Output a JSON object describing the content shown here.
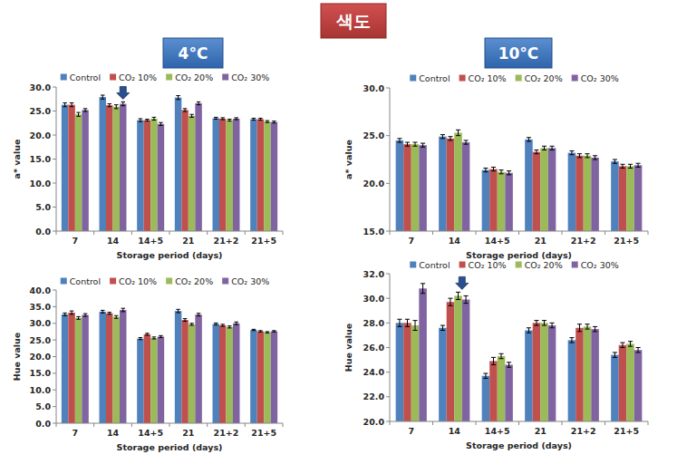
{
  "heading": "색도",
  "column_headers": [
    "4°C",
    "10°C"
  ],
  "chart_data": [
    {
      "type": "bar",
      "x_label": "Storage period (days)",
      "y_label": "a* value",
      "categories": [
        "7",
        "14",
        "14+5",
        "21",
        "21+2",
        "21+5"
      ],
      "series": [
        {
          "name": "Control",
          "color": "#4f81bd",
          "values": [
            26.3,
            27.9,
            23.1,
            27.8,
            23.5,
            23.3
          ],
          "errors": [
            0.4,
            0.4,
            0.3,
            0.4,
            0.2,
            0.2
          ]
        },
        {
          "name": "CO₂ 10%",
          "color": "#c0504d",
          "values": [
            26.3,
            26.2,
            23.1,
            25.2,
            23.4,
            23.3
          ],
          "errors": [
            0.4,
            0.3,
            0.2,
            0.3,
            0.2,
            0.2
          ]
        },
        {
          "name": "CO₂ 20%",
          "color": "#9bbb59",
          "values": [
            24.3,
            25.9,
            23.4,
            24.0,
            23.1,
            22.8
          ],
          "errors": [
            0.4,
            0.4,
            0.3,
            0.3,
            0.2,
            0.2
          ]
        },
        {
          "name": "CO₂ 30%",
          "color": "#8064a2",
          "values": [
            25.2,
            26.5,
            22.3,
            26.6,
            23.4,
            22.7
          ],
          "errors": [
            0.3,
            0.4,
            0.3,
            0.3,
            0.2,
            0.2
          ]
        }
      ],
      "ylim": [
        0,
        30
      ],
      "yticks": [
        {
          "value": 0,
          "label": "0.0"
        },
        {
          "value": 5,
          "label": "5.0"
        },
        {
          "value": 10,
          "label": "10.0"
        },
        {
          "value": 15,
          "label": "15.0"
        },
        {
          "value": 20,
          "label": "20.0"
        },
        {
          "value": 25,
          "label": "25.0"
        },
        {
          "value": 30,
          "label": "30.0"
        }
      ],
      "grid": false,
      "legend": "top"
    },
    {
      "type": "bar",
      "x_label": "Storage period (days)",
      "y_label": "a* value",
      "categories": [
        "7",
        "14",
        "14+5",
        "21",
        "21+2",
        "21+5"
      ],
      "series": [
        {
          "name": "Control",
          "color": "#4f81bd",
          "values": [
            24.5,
            24.9,
            21.4,
            24.6,
            23.2,
            22.3
          ],
          "errors": [
            0.2,
            0.2,
            0.2,
            0.2,
            0.2,
            0.2
          ]
        },
        {
          "name": "CO₂ 10%",
          "color": "#c0504d",
          "values": [
            24.1,
            24.7,
            21.5,
            23.3,
            22.9,
            21.8
          ],
          "errors": [
            0.2,
            0.2,
            0.2,
            0.2,
            0.2,
            0.2
          ]
        },
        {
          "name": "CO₂ 20%",
          "color": "#9bbb59",
          "values": [
            24.1,
            25.3,
            21.2,
            23.7,
            22.9,
            21.8
          ],
          "errors": [
            0.2,
            0.3,
            0.2,
            0.2,
            0.2,
            0.2
          ]
        },
        {
          "name": "CO₂ 30%",
          "color": "#8064a2",
          "values": [
            24.0,
            24.3,
            21.1,
            23.7,
            22.7,
            21.9
          ],
          "errors": [
            0.2,
            0.2,
            0.2,
            0.2,
            0.2,
            0.2
          ]
        }
      ],
      "ylim": [
        15,
        30
      ],
      "yticks": [
        {
          "value": 15,
          "label": "15.0"
        },
        {
          "value": 20,
          "label": "20.0"
        },
        {
          "value": 25,
          "label": "25.0"
        },
        {
          "value": 30,
          "label": "30.0"
        }
      ],
      "grid": false,
      "legend": "top"
    },
    {
      "type": "bar",
      "x_label": "Storage period (days)",
      "y_label": "Hue value",
      "categories": [
        "7",
        "14",
        "14+5",
        "21",
        "21+2",
        "21+5"
      ],
      "series": [
        {
          "name": "Control",
          "color": "#4f81bd",
          "values": [
            32.7,
            33.5,
            25.4,
            33.7,
            29.8,
            28.0
          ],
          "errors": [
            0.4,
            0.4,
            0.3,
            0.5,
            0.3,
            0.2
          ]
        },
        {
          "name": "CO₂ 10%",
          "color": "#c0504d",
          "values": [
            33.2,
            33.0,
            26.7,
            31.0,
            29.4,
            27.6
          ],
          "errors": [
            0.5,
            0.3,
            0.3,
            0.4,
            0.3,
            0.2
          ]
        },
        {
          "name": "CO₂ 20%",
          "color": "#9bbb59",
          "values": [
            31.6,
            31.9,
            25.6,
            29.7,
            28.9,
            27.3
          ],
          "errors": [
            0.4,
            0.4,
            0.3,
            0.3,
            0.3,
            0.2
          ]
        },
        {
          "name": "CO₂ 30%",
          "color": "#8064a2",
          "values": [
            32.5,
            34.0,
            26.0,
            32.6,
            30.0,
            27.6
          ],
          "errors": [
            0.4,
            0.5,
            0.3,
            0.4,
            0.4,
            0.2
          ]
        }
      ],
      "ylim": [
        0,
        40
      ],
      "yticks": [
        {
          "value": 0,
          "label": "0.0"
        },
        {
          "value": 5,
          "label": "5.0"
        },
        {
          "value": 10,
          "label": "10.0"
        },
        {
          "value": 15,
          "label": "15.0"
        },
        {
          "value": 20,
          "label": "20.0"
        },
        {
          "value": 25,
          "label": "25.0"
        },
        {
          "value": 30,
          "label": "30.0"
        },
        {
          "value": 35,
          "label": "35.0"
        },
        {
          "value": 40,
          "label": "40.0"
        }
      ],
      "grid": false,
      "legend": "top"
    },
    {
      "type": "bar",
      "x_label": "Storage period (days)",
      "y_label": "Hue value",
      "categories": [
        "7",
        "14",
        "14+5",
        "21",
        "21+2",
        "21+5"
      ],
      "series": [
        {
          "name": "Control",
          "color": "#4f81bd",
          "values": [
            28.0,
            27.6,
            23.7,
            27.4,
            26.6,
            25.4
          ],
          "errors": [
            0.3,
            0.2,
            0.2,
            0.2,
            0.2,
            0.2
          ]
        },
        {
          "name": "CO₂ 10%",
          "color": "#c0504d",
          "values": [
            28.0,
            29.7,
            24.9,
            28.0,
            27.6,
            26.2
          ],
          "errors": [
            0.3,
            0.3,
            0.3,
            0.2,
            0.3,
            0.2
          ]
        },
        {
          "name": "CO₂ 20%",
          "color": "#9bbb59",
          "values": [
            27.8,
            30.2,
            25.3,
            28.0,
            27.7,
            26.3
          ],
          "errors": [
            0.4,
            0.3,
            0.2,
            0.2,
            0.2,
            0.2
          ]
        },
        {
          "name": "CO₂ 30%",
          "color": "#8064a2",
          "values": [
            30.8,
            29.9,
            24.6,
            27.8,
            27.5,
            25.8
          ],
          "errors": [
            0.4,
            0.3,
            0.2,
            0.2,
            0.2,
            0.2
          ]
        }
      ],
      "ylim": [
        20,
        32
      ],
      "yticks": [
        {
          "value": 20,
          "label": "20.0"
        },
        {
          "value": 22,
          "label": "22.0"
        },
        {
          "value": 24,
          "label": "24.0"
        },
        {
          "value": 26,
          "label": "26.0"
        },
        {
          "value": 28,
          "label": "28.0"
        },
        {
          "value": 30,
          "label": "30.0"
        },
        {
          "value": 32,
          "label": "32.0"
        }
      ],
      "grid": false,
      "legend": "top"
    }
  ]
}
